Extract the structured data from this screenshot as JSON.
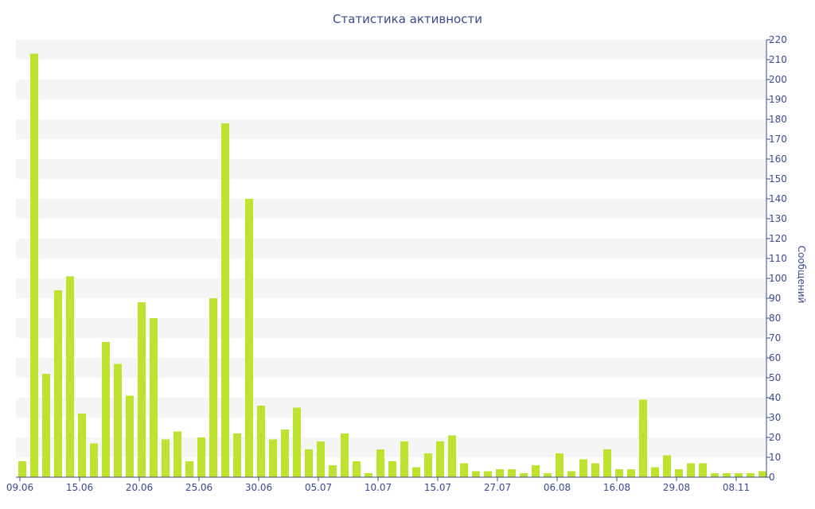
{
  "chart_data": {
    "type": "bar",
    "title": "Статистика активности",
    "xlabel": "",
    "ylabel": "Сообщений",
    "ylim": [
      0,
      220
    ],
    "y_ticks": [
      0,
      10,
      20,
      30,
      40,
      50,
      60,
      70,
      80,
      90,
      100,
      110,
      120,
      130,
      140,
      150,
      160,
      170,
      180,
      190,
      200,
      210,
      220
    ],
    "y_axis_side": "right",
    "grid": "alternating horizontal bands",
    "x_tick_labels": [
      "09.06",
      "15.06",
      "20.06",
      "25.06",
      "30.06",
      "05.07",
      "10.07",
      "15.07",
      "27.07",
      "06.08",
      "16.08",
      "29.08",
      "08.11"
    ],
    "x_tick_bar_index": [
      0,
      5,
      10,
      15,
      20,
      25,
      30,
      35,
      40,
      45,
      50,
      55,
      60
    ],
    "values": [
      8,
      213,
      52,
      94,
      101,
      32,
      17,
      68,
      57,
      41,
      88,
      80,
      19,
      23,
      8,
      20,
      90,
      178,
      22,
      140,
      36,
      19,
      24,
      35,
      14,
      18,
      6,
      22,
      8,
      2,
      14,
      8,
      18,
      5,
      12,
      18,
      21,
      7,
      3,
      3,
      4,
      4,
      2,
      6,
      2,
      12,
      3,
      9,
      7,
      14,
      4,
      4,
      39,
      5,
      11,
      4,
      7,
      7,
      2,
      2,
      2,
      2,
      3
    ],
    "colors": {
      "bar": "#bde22f",
      "axis": "#3a4a8c",
      "band": "#f5f5f5"
    }
  }
}
